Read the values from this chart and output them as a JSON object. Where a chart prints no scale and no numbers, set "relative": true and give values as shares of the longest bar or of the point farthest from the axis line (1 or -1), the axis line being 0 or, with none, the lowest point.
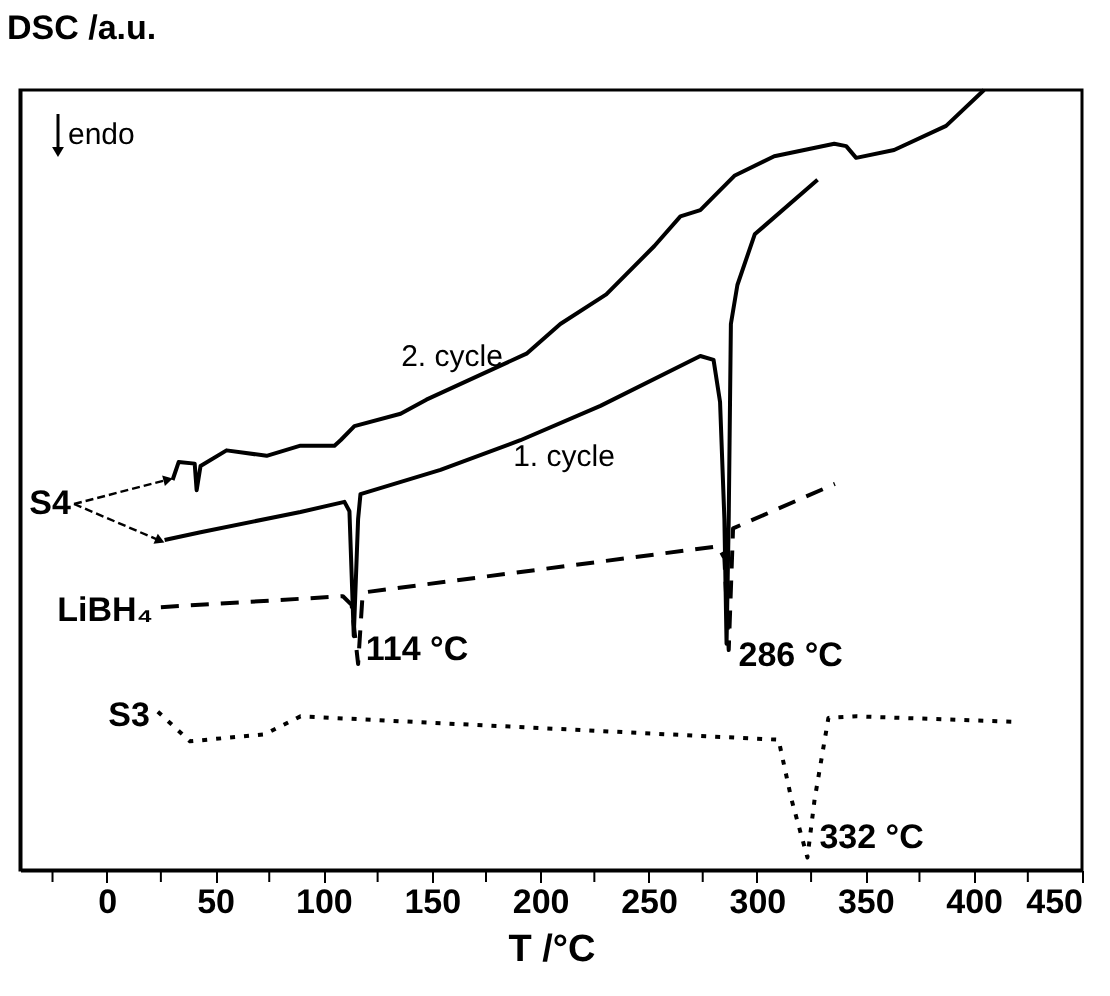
{
  "chart_data": {
    "type": "line",
    "ylabel": "DSC /a.u.",
    "xlabel": "T /°C",
    "relative": true,
    "grid": false,
    "xlim": [
      -40,
      450
    ],
    "xticks": [
      {
        "value": -25,
        "label": null
      },
      0,
      {
        "value": 25,
        "label": null
      },
      50,
      {
        "value": 75,
        "label": null
      },
      100,
      {
        "value": 125,
        "label": null
      },
      150,
      {
        "value": 175,
        "label": null
      },
      200,
      {
        "value": 225,
        "label": null
      },
      250,
      {
        "value": 275,
        "label": null
      },
      300,
      {
        "value": 325,
        "label": null
      },
      350,
      {
        "value": 375,
        "label": null
      },
      400,
      {
        "value": 425,
        "label": null
      },
      450
    ],
    "series": [
      {
        "color": "#000000",
        "line_style": "solid",
        "x": [
          30.4,
          33.2,
          40.6,
          41.5,
          43.3,
          55.3,
          73.8,
          89.4,
          105.1,
          107.9,
          114.3,
          135.6,
          147.5,
          193.7,
          209.3,
          230.5,
          252.7,
          264.7,
          273.9,
          280.3,
          289.6,
          308.0,
          335.7,
          341.2,
          345.8,
          363.3,
          387.3,
          404.8
        ],
        "values": [
          0.5,
          0.523,
          0.521,
          0.487,
          0.518,
          0.538,
          0.531,
          0.544,
          0.544,
          0.551,
          0.569,
          0.585,
          0.603,
          0.662,
          0.7,
          0.738,
          0.8,
          0.838,
          0.846,
          0.864,
          0.89,
          0.915,
          0.931,
          0.928,
          0.913,
          0.923,
          0.954,
          1.0
        ]
      },
      {
        "color": "#000000",
        "line_style": "solid",
        "x": [
          26.7,
          43.3,
          89.4,
          109.7,
          112,
          114,
          116,
          117.1,
          154.0,
          190.9,
          227.8,
          273.9,
          280,
          283,
          285,
          286,
          287,
          288,
          291,
          299,
          328
        ],
        "values": [
          0.423,
          0.433,
          0.459,
          0.472,
          0.46,
          0.3,
          0.45,
          0.482,
          0.513,
          0.551,
          0.595,
          0.659,
          0.654,
          0.6,
          0.45,
          0.29,
          0.45,
          0.7,
          0.75,
          0.815,
          0.885
        ]
      },
      {
        "name": "LiBH₄",
        "color": "#000000",
        "line_style": "dashed",
        "x": [
          25,
          109,
          113,
          116,
          118,
          119,
          282,
          285,
          287,
          289,
          336
        ],
        "values": [
          0.337,
          0.351,
          0.34,
          0.264,
          0.35,
          0.356,
          0.415,
          0.4,
          0.282,
          0.438,
          0.495
        ]
      },
      {
        "name": "S3",
        "color": "#000000",
        "line_style": "dotted",
        "x": [
          23.6,
          38.4,
          72.9,
          89.4,
          310,
          316,
          323.3,
          326.6,
          333,
          346,
          418.7
        ],
        "values": [
          0.203,
          0.165,
          0.174,
          0.197,
          0.167,
          0.09,
          0.016,
          0.09,
          0.195,
          0.197,
          0.19
        ]
      }
    ],
    "annotations": [
      {
        "text": "114 °C",
        "x": 114,
        "y": 0.29
      },
      {
        "text": "286 °C",
        "x": 286,
        "y": 0.282
      },
      {
        "text": "332 °C",
        "x": 323.3,
        "y": 0.016
      },
      "S4",
      "2. cycle",
      "1. cycle",
      "endo"
    ]
  }
}
